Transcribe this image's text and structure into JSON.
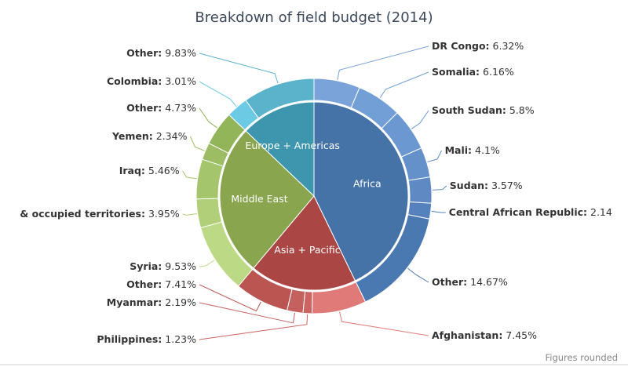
{
  "chart_data": {
    "type": "pie",
    "title": "Breakdown of field budget (2014)",
    "note": "Figures rounded",
    "unit": "%",
    "inner": [
      {
        "name": "Africa",
        "color": "#4572a7"
      },
      {
        "name": "Asia + Pacific",
        "color": "#aa4643"
      },
      {
        "name": "Middle East",
        "color": "#89a54e"
      },
      {
        "name": "Europe + Americas",
        "color": "#3d96ae"
      }
    ],
    "outer": [
      {
        "group": "Africa",
        "name": "DR Congo",
        "value": 6.32,
        "label": "DR Congo",
        "value_label": "6.32%",
        "color": "#7aa3da"
      },
      {
        "group": "Africa",
        "name": "Somalia",
        "value": 6.16,
        "label": "Somalia",
        "value_label": "6.16%",
        "color": "#72a0d6"
      },
      {
        "group": "Africa",
        "name": "South Sudan",
        "value": 5.8,
        "label": "South Sudan",
        "value_label": "5.8%",
        "color": "#6b98d0"
      },
      {
        "group": "Africa",
        "name": "Mali",
        "value": 4.1,
        "label": "Mali",
        "value_label": "4.1%",
        "color": "#6591cb"
      },
      {
        "group": "Africa",
        "name": "Sudan",
        "value": 3.57,
        "label": "Sudan",
        "value_label": "3.57%",
        "color": "#5e89c3"
      },
      {
        "group": "Africa",
        "name": "Central African Republic",
        "value": 2.14,
        "label": "Central African Republic",
        "value_label": "2.14",
        "color": "#5582bc"
      },
      {
        "group": "Africa",
        "name": "Other",
        "value": 14.67,
        "label": "Other",
        "value_label": "14.67%",
        "color": "#4a78b0"
      },
      {
        "group": "Asia + Pacific",
        "name": "Afghanistan",
        "value": 7.45,
        "label": "Afghanistan",
        "value_label": "7.45%",
        "color": "#e07a78"
      },
      {
        "group": "Asia + Pacific",
        "name": "Philippines",
        "value": 1.23,
        "label": "Philippines",
        "value_label": "1.23%",
        "color": "#cc6461"
      },
      {
        "group": "Asia + Pacific",
        "name": "Myanmar",
        "value": 2.19,
        "label": "Myanmar",
        "value_label": "2.19%",
        "color": "#c4605d"
      },
      {
        "group": "Asia + Pacific",
        "name": "Other",
        "value": 7.41,
        "label": "Other",
        "value_label": "7.41%",
        "color": "#bb5552"
      },
      {
        "group": "Middle East",
        "name": "Syria",
        "value": 9.53,
        "label": "Syria",
        "value_label": "9.53%",
        "color": "#bcd985"
      },
      {
        "group": "Middle East",
        "name": "Israel & occupied territories",
        "value": 3.95,
        "label": "& occupied territories",
        "value_label": "3.95%",
        "color": "#b0cf78"
      },
      {
        "group": "Middle East",
        "name": "Iraq",
        "value": 5.46,
        "label": "Iraq",
        "value_label": "5.46%",
        "color": "#a5c56d"
      },
      {
        "group": "Middle East",
        "name": "Yemen",
        "value": 2.34,
        "label": "Yemen",
        "value_label": "2.34%",
        "color": "#9cbd64"
      },
      {
        "group": "Middle East",
        "name": "Other",
        "value": 4.73,
        "label": "Other",
        "value_label": "4.73%",
        "color": "#93b55a"
      },
      {
        "group": "Europe + Americas",
        "name": "Colombia",
        "value": 3.01,
        "label": "Colombia",
        "value_label": "3.01%",
        "color": "#6ccae4"
      },
      {
        "group": "Europe + Americas",
        "name": "Other",
        "value": 9.83,
        "label": "Other",
        "value_label": "9.83%",
        "color": "#5ab2cb"
      }
    ]
  }
}
